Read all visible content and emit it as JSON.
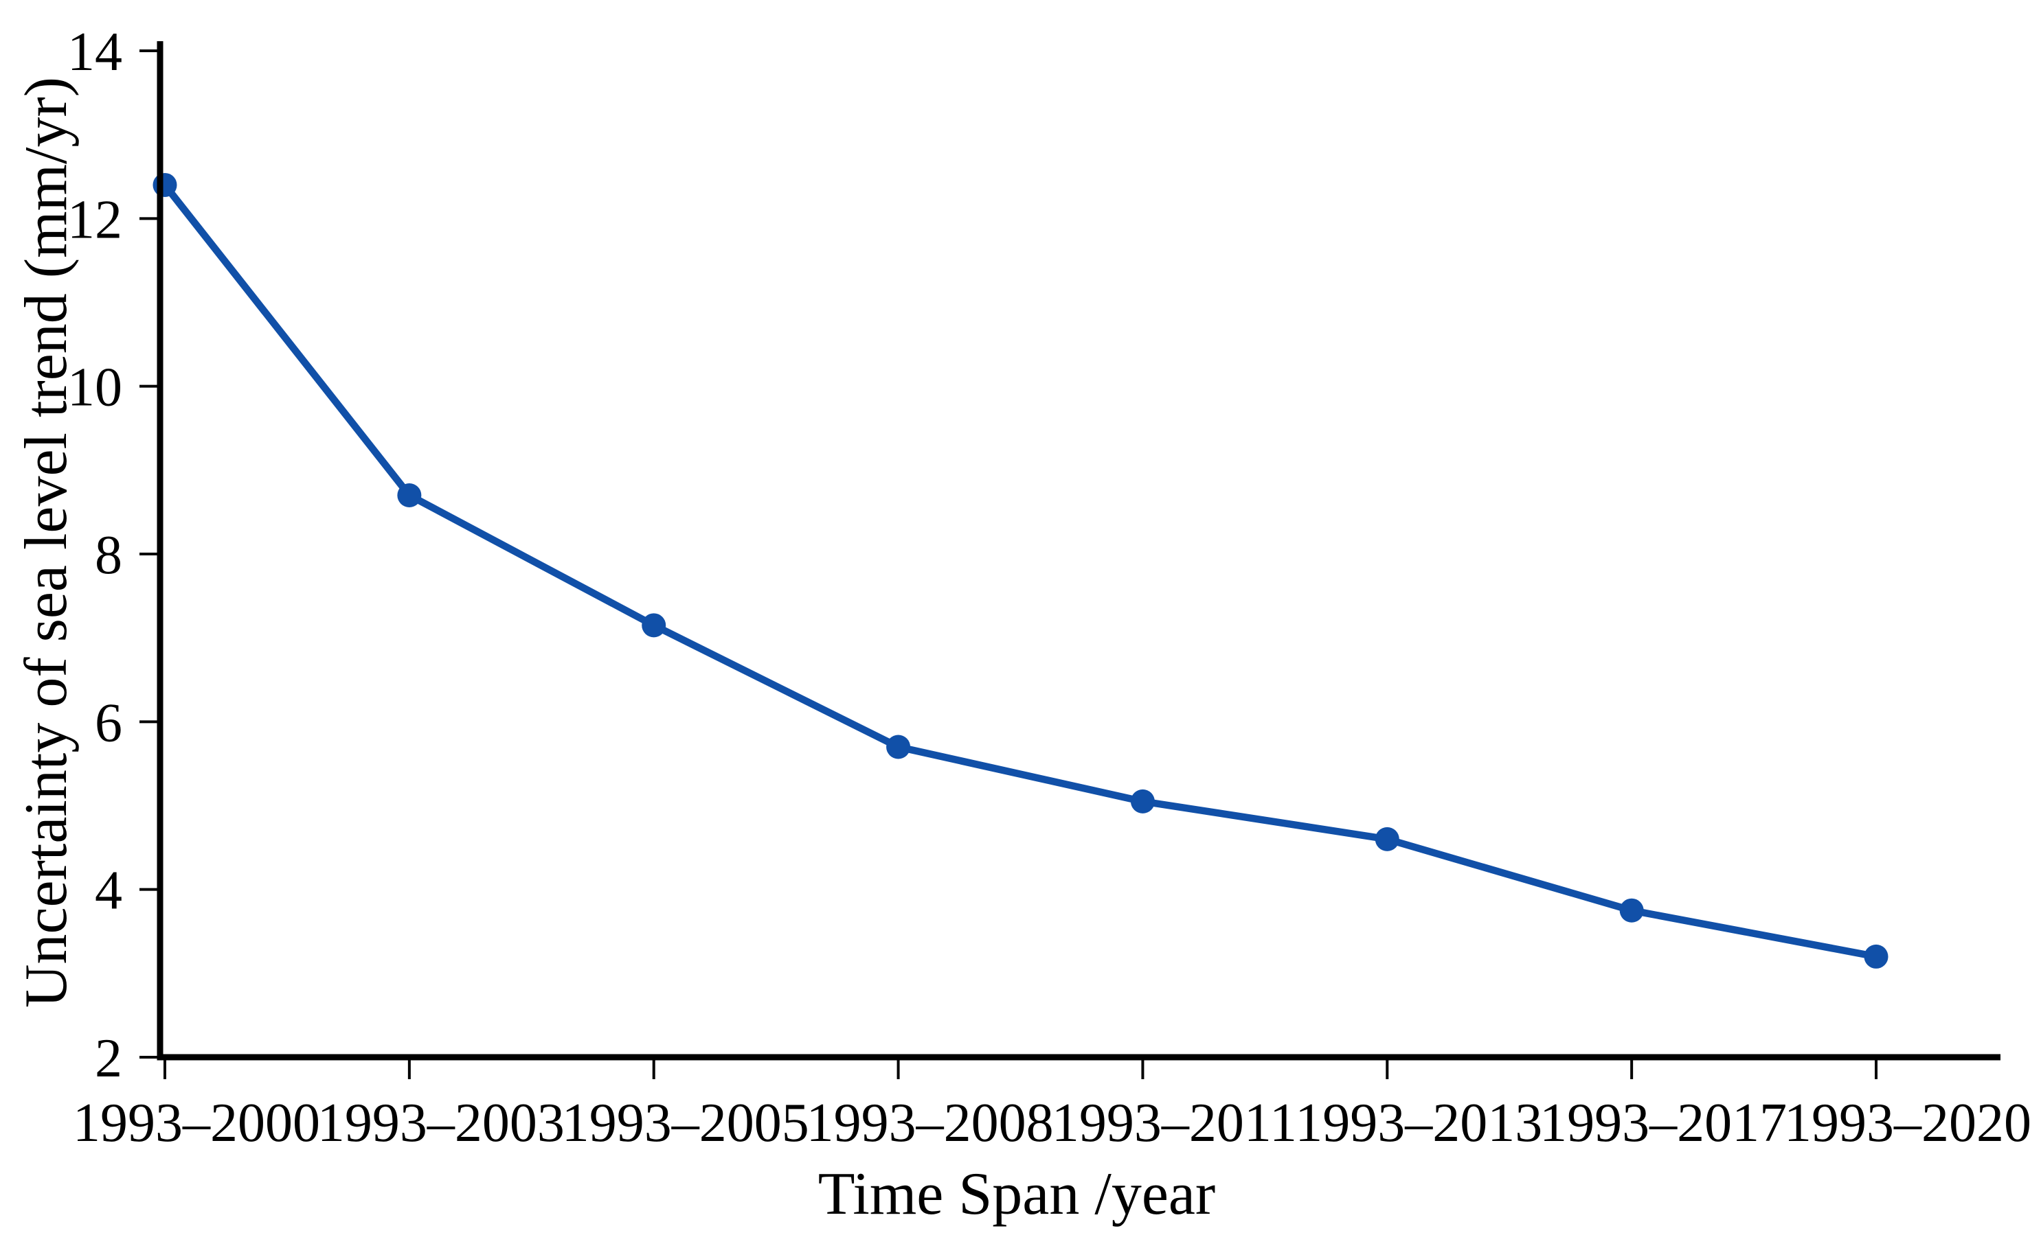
{
  "chart_data": {
    "type": "line",
    "categories": [
      "1993–2000",
      "1993–2003",
      "1993–2005",
      "1993–2008",
      "1993–2011",
      "1993–2013",
      "1993–2017",
      "1993–2020"
    ],
    "series": [
      {
        "name": "Uncertainty of sea level trend",
        "values": [
          12.4,
          8.7,
          7.15,
          5.7,
          5.05,
          4.6,
          3.75,
          3.2
        ]
      }
    ],
    "title": "",
    "xlabel": "Time Span /year",
    "ylabel": "Uncertainty of sea level trend (mm/yr)",
    "ylim": [
      2,
      14
    ],
    "yticks": [
      14,
      12,
      10,
      8,
      6,
      4,
      2
    ],
    "grid": false,
    "legend": "none",
    "line_color": "#1150a8",
    "marker": "circle",
    "axis_color": "#000000"
  }
}
